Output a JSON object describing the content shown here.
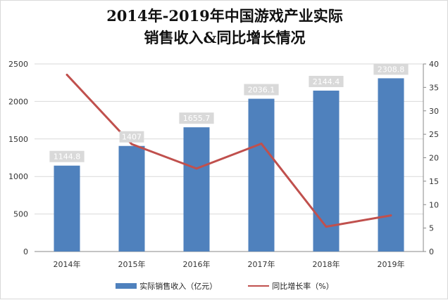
{
  "chart_data": {
    "type": "bar",
    "title_line1": "2014年-2019年中国游戏产业实际",
    "title_line2": "销售收入&同比增长情况",
    "categories": [
      "2014年",
      "2015年",
      "2016年",
      "2017年",
      "2018年",
      "2019年"
    ],
    "series": [
      {
        "name": "实际销售收入（亿元）",
        "type": "bar",
        "axis": "left",
        "values": [
          1144.8,
          1407,
          1655.7,
          2036.1,
          2144.4,
          2308.8
        ],
        "labels": [
          "1144.8",
          "1407",
          "1655.7",
          "2036.1",
          "2144.4",
          "2308.8"
        ]
      },
      {
        "name": "同比增长率（%）",
        "type": "line",
        "axis": "right",
        "values": [
          37.7,
          22.9,
          17.7,
          23.0,
          5.3,
          7.7
        ]
      }
    ],
    "y_left": {
      "min": 0,
      "max": 2500,
      "ticks": [
        "0",
        "500",
        "1000",
        "1500",
        "2000",
        "2500"
      ]
    },
    "y_right": {
      "min": 0,
      "max": 40,
      "ticks": [
        "0",
        "5",
        "10",
        "15",
        "20",
        "25",
        "30",
        "35",
        "40"
      ]
    },
    "grid": true,
    "legend_position": "bottom",
    "colors": {
      "bar": "#4f81bd",
      "line": "#c0504d",
      "data_label_bg": "#d9d9d9",
      "data_label_text": "#ffffff",
      "grid": "#d9d9d9"
    }
  }
}
